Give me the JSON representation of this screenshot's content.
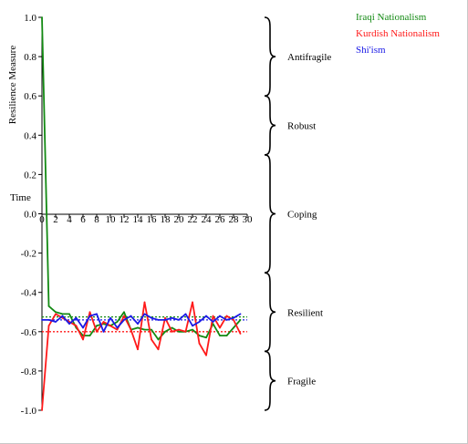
{
  "chart_data": {
    "type": "line",
    "ylabel": "Resilience Measure",
    "xlabel": "Time",
    "xlim": [
      0,
      30
    ],
    "ylim": [
      -1.0,
      1.0
    ],
    "x_ticks": [
      0,
      2,
      4,
      6,
      8,
      10,
      12,
      14,
      16,
      18,
      20,
      22,
      24,
      26,
      28,
      30
    ],
    "y_ticks": [
      1.0,
      0.8,
      0.6,
      0.4,
      0.2,
      0.0,
      -0.2,
      -0.4,
      -0.6,
      -0.8,
      -1.0
    ],
    "x_tick_labels": [
      "0",
      "2",
      "4",
      "6",
      "8",
      "10",
      "12",
      "14",
      "16",
      "18",
      "20",
      "22",
      "24",
      "26",
      "28",
      "30"
    ],
    "y_tick_labels": [
      "1.0",
      "0.8",
      "0.6",
      "0.4",
      "0.2",
      "0.0",
      "-0.2",
      "-0.4",
      "-0.6",
      "-0.8",
      "-1.0"
    ],
    "legend_position": "top-right",
    "series": [
      {
        "name": "Iraqi Nationalism",
        "color": "#138a13",
        "x": [
          0,
          1,
          2,
          3,
          4,
          5,
          6,
          7,
          8,
          9,
          10,
          11,
          12,
          13,
          14,
          15,
          16,
          17,
          18,
          19,
          20,
          21,
          22,
          23,
          24,
          25,
          26,
          27,
          28,
          29
        ],
        "values": [
          1.0,
          -0.47,
          -0.5,
          -0.51,
          -0.51,
          -0.58,
          -0.62,
          -0.62,
          -0.57,
          -0.56,
          -0.57,
          -0.55,
          -0.5,
          -0.59,
          -0.58,
          -0.59,
          -0.59,
          -0.64,
          -0.6,
          -0.58,
          -0.6,
          -0.6,
          -0.59,
          -0.62,
          -0.63,
          -0.56,
          -0.62,
          -0.62,
          -0.58,
          -0.54
        ],
        "mean": -0.525
      },
      {
        "name": "Kurdish Nationalism",
        "color": "#ff1a1a",
        "x": [
          0,
          1,
          2,
          3,
          4,
          5,
          6,
          7,
          8,
          9,
          10,
          11,
          12,
          13,
          14,
          15,
          16,
          17,
          18,
          19,
          20,
          21,
          22,
          23,
          24,
          25,
          26,
          27,
          28,
          29
        ],
        "values": [
          -1.0,
          -0.57,
          -0.51,
          -0.53,
          -0.55,
          -0.57,
          -0.64,
          -0.5,
          -0.6,
          -0.55,
          -0.57,
          -0.59,
          -0.52,
          -0.59,
          -0.69,
          -0.45,
          -0.64,
          -0.69,
          -0.53,
          -0.6,
          -0.59,
          -0.6,
          -0.45,
          -0.66,
          -0.72,
          -0.52,
          -0.58,
          -0.52,
          -0.54,
          -0.61
        ],
        "mean": -0.6
      },
      {
        "name": "Shi'ism",
        "color": "#1a1ae6",
        "x": [
          0,
          1,
          2,
          3,
          4,
          5,
          6,
          7,
          8,
          9,
          10,
          11,
          12,
          13,
          14,
          15,
          16,
          17,
          18,
          19,
          20,
          21,
          22,
          23,
          24,
          25,
          26,
          27,
          28,
          29
        ],
        "values": [
          -0.54,
          -0.54,
          -0.55,
          -0.52,
          -0.56,
          -0.53,
          -0.58,
          -0.52,
          -0.51,
          -0.6,
          -0.53,
          -0.58,
          -0.54,
          -0.52,
          -0.56,
          -0.51,
          -0.53,
          -0.54,
          -0.54,
          -0.53,
          -0.54,
          -0.51,
          -0.57,
          -0.55,
          -0.52,
          -0.55,
          -0.52,
          -0.54,
          -0.53,
          -0.51
        ],
        "mean": -0.54
      }
    ],
    "regions": [
      {
        "label": "Antifragile",
        "from": 0.6,
        "to": 1.0
      },
      {
        "label": "Robust",
        "from": 0.3,
        "to": 0.6
      },
      {
        "label": "Coping",
        "from": -0.3,
        "to": 0.3
      },
      {
        "label": "Resilient",
        "from": -0.7,
        "to": -0.3
      },
      {
        "label": "Fragile",
        "from": -1.0,
        "to": -0.7
      }
    ]
  }
}
